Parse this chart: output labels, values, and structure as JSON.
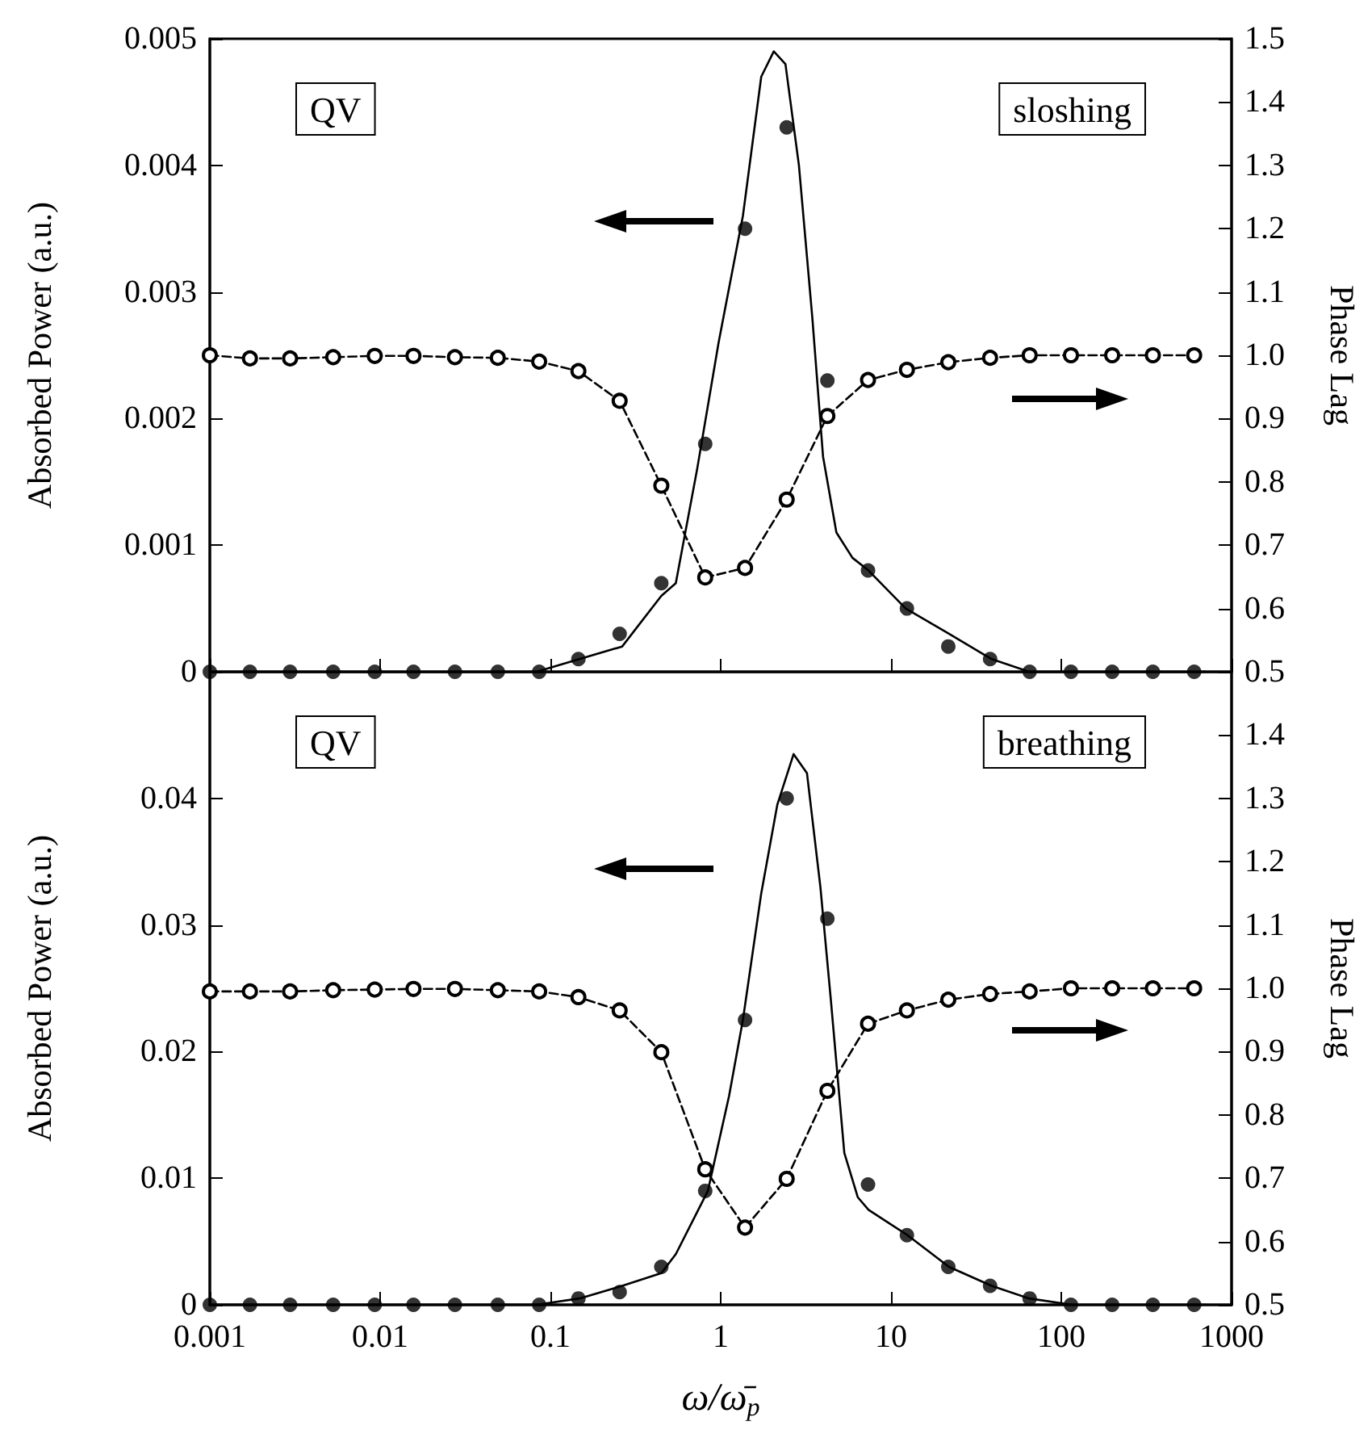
{
  "chart_data": [
    {
      "type": "line",
      "log": "x",
      "tick_labels": "y",
      "ylabel": "Absorbed Power (a.u.)",
      "y2label": "Phase Lag",
      "annotations": [
        "QV",
        "sloshing"
      ],
      "xlim": [
        0.001,
        1000
      ],
      "xticks": [
        0.001,
        0.01,
        0.1,
        1,
        10,
        100,
        1000
      ],
      "ylim": [
        0,
        0.005
      ],
      "yticks": [
        0,
        0.001,
        0.002,
        0.003,
        0.004,
        0.005
      ],
      "y2lim": [
        0.5,
        1.5
      ],
      "y2ticks": [
        0.5,
        0.6,
        0.7,
        0.8,
        0.9,
        {
          "value": 1,
          "label": "1.0"
        },
        1.1,
        1.2,
        1.3,
        1.4,
        1.5
      ],
      "series": [
        {
          "color": "#000000",
          "line_style": "solid",
          "marker": "none",
          "x": [
            0.001,
            0.0094,
            0.0828,
            0.148,
            0.264,
            0.448,
            0.545,
            0.727,
            0.972,
            1.35,
            1.73,
            2.05,
            2.4,
            2.88,
            3.45,
            3.99,
            4.78,
            5.94,
            7.38,
            12.2,
            21.9,
            39,
            64.7,
            116,
            706
          ],
          "values": [
            0,
            0,
            0,
            0.0001,
            0.0002,
            0.0006,
            0.0007,
            0.0016,
            0.0026,
            0.0036,
            0.0047,
            0.0049,
            0.0048,
            0.004,
            0.0028,
            0.0017,
            0.0011,
            0.0009,
            0.0008,
            0.0005,
            0.0003,
            0.0001,
            0,
            0,
            0
          ]
        },
        {
          "type": "scatter",
          "color": "#000000",
          "marker": "circle",
          "x": [
            0.001,
            0.00172,
            0.00296,
            0.0053,
            0.0093,
            0.0157,
            0.0275,
            0.0491,
            0.0859,
            0.146,
            0.255,
            0.448,
            0.811,
            1.39,
            2.44,
            4.23,
            7.33,
            12.4,
            21.7,
            38.2,
            65.2,
            114,
            199,
            345,
            603
          ],
          "values": [
            0,
            0,
            0,
            0,
            0,
            0,
            0,
            0,
            0,
            0.0001,
            0.0003,
            0.0007,
            0.0018,
            0.0035,
            0.0043,
            0.0023,
            0.0008,
            0.0005,
            0.0002,
            0.0001,
            0,
            0,
            0,
            0,
            0
          ]
        },
        {
          "axis": "y2",
          "color": "#000000",
          "line_style": "dashed",
          "marker": "circle",
          "x": [
            0.001,
            0.00172,
            0.00296,
            0.0053,
            0.0093,
            0.0157,
            0.0275,
            0.0491,
            0.0859,
            0.146,
            0.255,
            0.448,
            0.811,
            1.39,
            2.44,
            4.23,
            7.33,
            12.4,
            21.7,
            38.2,
            65.2,
            114,
            199,
            345,
            603
          ],
          "values": [
            1.0,
            0.995,
            0.995,
            0.997,
            0.999,
            0.999,
            0.997,
            0.996,
            0.99,
            0.975,
            0.928,
            0.794,
            0.649,
            0.664,
            0.772,
            0.904,
            0.961,
            0.977,
            0.989,
            0.996,
            1.0,
            1.0,
            1.0,
            1.0,
            1.0
          ]
        }
      ]
    },
    {
      "type": "line",
      "log": "x",
      "xlabel": "ω/ω̄$_{p}$",
      "ylabel": "Absorbed Power (a.u.)",
      "y2label": "Phase Lag",
      "annotations": [
        "QV",
        "breathing"
      ],
      "xlim": [
        0.001,
        1000
      ],
      "xticks": [
        0.001,
        0.01,
        0.1,
        1,
        10,
        100,
        1000
      ],
      "ylim": [
        0,
        0.05
      ],
      "yticks": [
        0,
        0.01,
        0.02,
        0.03,
        0.04
      ],
      "y2lim": [
        0.5,
        1.5
      ],
      "y2ticks": [
        0.5,
        0.6,
        0.7,
        0.8,
        0.9,
        {
          "value": 1,
          "label": "1.0"
        },
        1.1,
        1.2,
        1.3,
        1.4
      ],
      "series": [
        {
          "color": "#000000",
          "line_style": "solid",
          "marker": "none",
          "x": [
            0.001,
            0.0828,
            0.148,
            0.264,
            0.448,
            0.545,
            0.841,
            1.12,
            1.35,
            1.73,
            2.15,
            2.68,
            3.21,
            3.85,
            4.44,
            5.32,
            6.38,
            7.38,
            12.5,
            21.9,
            39,
            64.7,
            116,
            706
          ],
          "values": [
            0,
            0,
            0.0005,
            0.0015,
            0.0025,
            0.004,
            0.009,
            0.0165,
            0.0225,
            0.0325,
            0.0395,
            0.0435,
            0.042,
            0.033,
            0.024,
            0.012,
            0.0085,
            0.0075,
            0.0055,
            0.003,
            0.0015,
            0.0005,
            0,
            0
          ]
        },
        {
          "type": "scatter",
          "color": "#000000",
          "marker": "circle",
          "x": [
            0.001,
            0.00172,
            0.00296,
            0.0053,
            0.0093,
            0.0157,
            0.0275,
            0.0491,
            0.0859,
            0.146,
            0.255,
            0.448,
            0.811,
            1.39,
            2.44,
            4.23,
            7.33,
            12.4,
            21.7,
            38.2,
            65.2,
            114,
            199,
            345,
            603
          ],
          "values": [
            0,
            0,
            0,
            0,
            0,
            0,
            0,
            0,
            0,
            0.0005,
            0.001,
            0.003,
            0.009,
            0.0225,
            0.04,
            0.0305,
            0.0095,
            0.0055,
            0.003,
            0.0015,
            0.0005,
            0,
            0,
            0,
            0
          ]
        },
        {
          "axis": "y2",
          "color": "#000000",
          "line_style": "dashed",
          "marker": "circle",
          "x": [
            0.001,
            0.00172,
            0.00296,
            0.0053,
            0.0093,
            0.0157,
            0.0275,
            0.0491,
            0.0859,
            0.146,
            0.255,
            0.448,
            0.811,
            1.39,
            2.44,
            4.23,
            7.33,
            12.4,
            21.7,
            38.2,
            65.2,
            114,
            199,
            345,
            603
          ],
          "values": [
            0.995,
            0.995,
            0.995,
            0.997,
            0.998,
            0.999,
            0.999,
            0.997,
            0.995,
            0.986,
            0.965,
            0.899,
            0.714,
            0.622,
            0.699,
            0.838,
            0.944,
            0.965,
            0.982,
            0.991,
            0.995,
            1.0,
            1.0,
            1.0,
            1.0
          ]
        }
      ]
    }
  ]
}
